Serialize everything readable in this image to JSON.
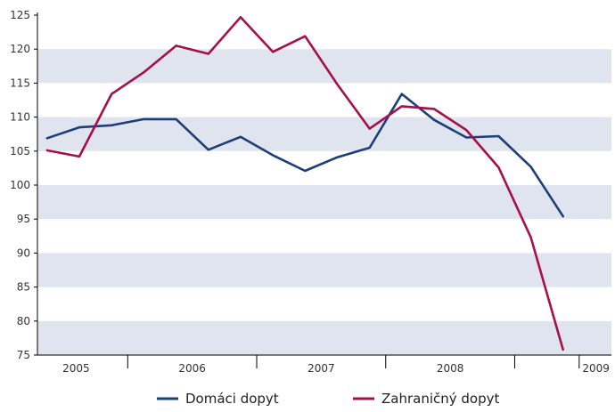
{
  "chart_data": {
    "type": "line",
    "title": "",
    "xlabel": "",
    "ylabel": "",
    "ylim": [
      75,
      125
    ],
    "yticks": [
      75,
      80,
      85,
      90,
      95,
      100,
      105,
      110,
      115,
      120,
      125
    ],
    "x_year_labels": [
      "2005",
      "2006",
      "2007",
      "2008",
      "2009"
    ],
    "x": [
      2004.875,
      2005.125,
      2005.375,
      2005.625,
      2005.875,
      2006.125,
      2006.375,
      2006.625,
      2006.875,
      2007.125,
      2007.375,
      2007.625,
      2007.875,
      2008.125,
      2008.375,
      2008.625,
      2008.875,
      2009.125
    ],
    "grid": "alternating horizontal bands",
    "legend_position": "bottom",
    "series": [
      {
        "name": "Domáci dopyt",
        "color": "#1c3f78",
        "values": [
          106.9,
          108.5,
          108.8,
          109.7,
          109.7,
          105.2,
          107.1,
          104.4,
          102.1,
          104.1,
          105.5,
          113.4,
          109.6,
          107.0,
          107.2,
          102.7,
          95.4,
          null
        ]
      },
      {
        "name": "Zahraničný dopyt",
        "color": "#a6104a",
        "values": [
          105.1,
          104.2,
          113.4,
          116.6,
          120.5,
          119.3,
          124.7,
          119.6,
          121.9,
          114.8,
          108.3,
          111.6,
          111.2,
          108.1,
          102.6,
          92.3,
          75.8,
          null
        ]
      }
    ],
    "band_color": "#dfe4ee"
  }
}
